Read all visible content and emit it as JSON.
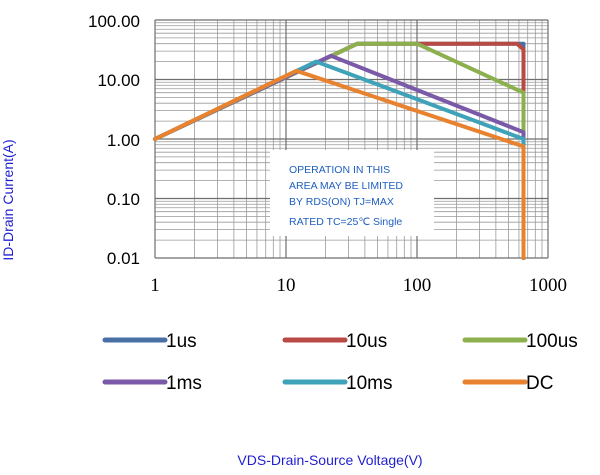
{
  "chart_data": {
    "type": "line",
    "xlabel": "VDS-Drain-Source Voltage(V)",
    "ylabel": "ID-Drain Current(A)",
    "x_scale": "log",
    "y_scale": "log",
    "xlim": [
      1,
      1000
    ],
    "ylim": [
      0.01,
      100
    ],
    "x_ticks": [
      "1",
      "10",
      "100",
      "1000"
    ],
    "y_ticks": [
      "0.01",
      "0.10",
      "1.00",
      "10.00",
      "100.00"
    ],
    "grid": true,
    "legend_position": "bottom",
    "annotation": [
      "OPERATION IN THIS",
      "AREA MAY BE LIMITED",
      "BY RDS(ON) TJ=MAX",
      "RATED TC=25℃ Single"
    ],
    "series": [
      {
        "name": "1us",
        "color": "#4a6fa5",
        "points": [
          [
            1,
            1.0
          ],
          [
            35,
            40
          ],
          [
            650,
            40
          ],
          [
            650,
            0.01
          ]
        ]
      },
      {
        "name": "10us",
        "color": "#b84a45",
        "points": [
          [
            1,
            1.0
          ],
          [
            35,
            40
          ],
          [
            580,
            40
          ],
          [
            650,
            32
          ],
          [
            650,
            0.01
          ]
        ]
      },
      {
        "name": "100us",
        "color": "#8db04e",
        "points": [
          [
            1,
            1.0
          ],
          [
            35,
            40
          ],
          [
            100,
            40
          ],
          [
            650,
            6.0
          ],
          [
            650,
            0.01
          ]
        ]
      },
      {
        "name": "1ms",
        "color": "#7a5aa8",
        "points": [
          [
            1,
            1.0
          ],
          [
            22,
            25
          ],
          [
            650,
            1.3
          ],
          [
            650,
            0.01
          ]
        ]
      },
      {
        "name": "10ms",
        "color": "#3ea2b8",
        "points": [
          [
            1,
            1.0
          ],
          [
            17,
            20
          ],
          [
            650,
            1.0
          ],
          [
            650,
            0.01
          ]
        ]
      },
      {
        "name": "DC",
        "color": "#e8822e",
        "points": [
          [
            1,
            1.0
          ],
          [
            12,
            14
          ],
          [
            650,
            0.75
          ],
          [
            650,
            0.01
          ]
        ]
      }
    ]
  }
}
